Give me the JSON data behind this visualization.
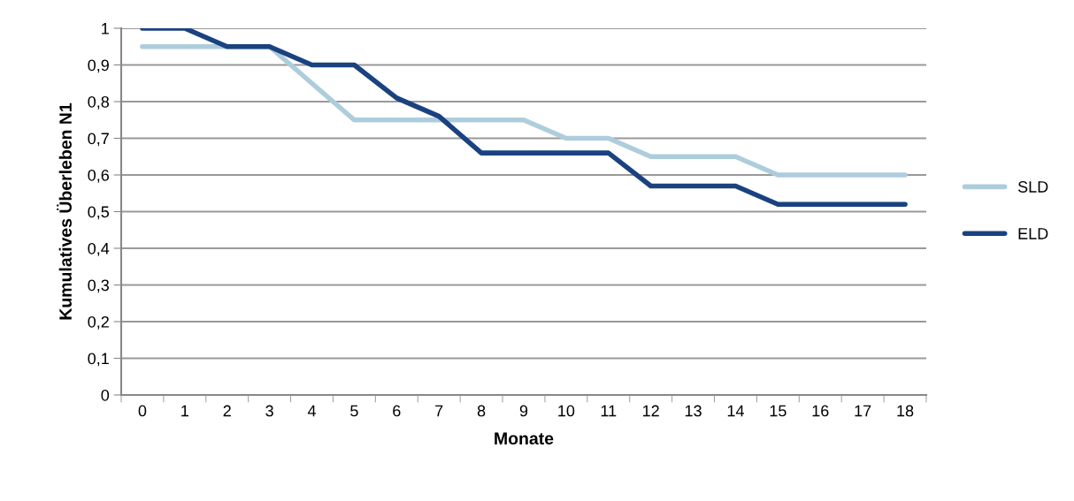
{
  "chart_data": {
    "type": "line",
    "xlabel": "Monate",
    "ylabel": "Kumulatives Überleben N1",
    "categories": [
      "0",
      "1",
      "2",
      "3",
      "4",
      "5",
      "6",
      "7",
      "8",
      "9",
      "10",
      "11",
      "12",
      "13",
      "14",
      "15",
      "16",
      "17",
      "18"
    ],
    "series": [
      {
        "name": "SLD",
        "color": "#aecddc",
        "values": [
          0.95,
          0.95,
          0.95,
          0.95,
          0.85,
          0.75,
          0.75,
          0.75,
          0.75,
          0.75,
          0.7,
          0.7,
          0.65,
          0.65,
          0.65,
          0.6,
          0.6,
          0.6,
          0.6
        ]
      },
      {
        "name": "ELD",
        "color": "#1a4280",
        "values": [
          1.0,
          1.0,
          0.95,
          0.95,
          0.9,
          0.9,
          0.81,
          0.76,
          0.66,
          0.66,
          0.66,
          0.66,
          0.57,
          0.57,
          0.57,
          0.52,
          0.52,
          0.52,
          0.52
        ]
      }
    ],
    "ylim": [
      0,
      1
    ],
    "yticks": [
      0,
      {
        "value": 0.1,
        "label": "0,1"
      },
      {
        "value": 0.2,
        "label": "0,2"
      },
      {
        "value": 0.3,
        "label": "0,3"
      },
      {
        "value": 0.4,
        "label": "0,4"
      },
      {
        "value": 0.5,
        "label": "0,5"
      },
      {
        "value": 0.6,
        "label": "0,6"
      },
      {
        "value": 0.7,
        "label": "0,7"
      },
      {
        "value": 0.8,
        "label": "0,8"
      },
      {
        "value": 0.9,
        "label": "0,9"
      },
      1
    ],
    "grid": "y",
    "legend": "right",
    "marker": "none",
    "line_style": "solid"
  }
}
